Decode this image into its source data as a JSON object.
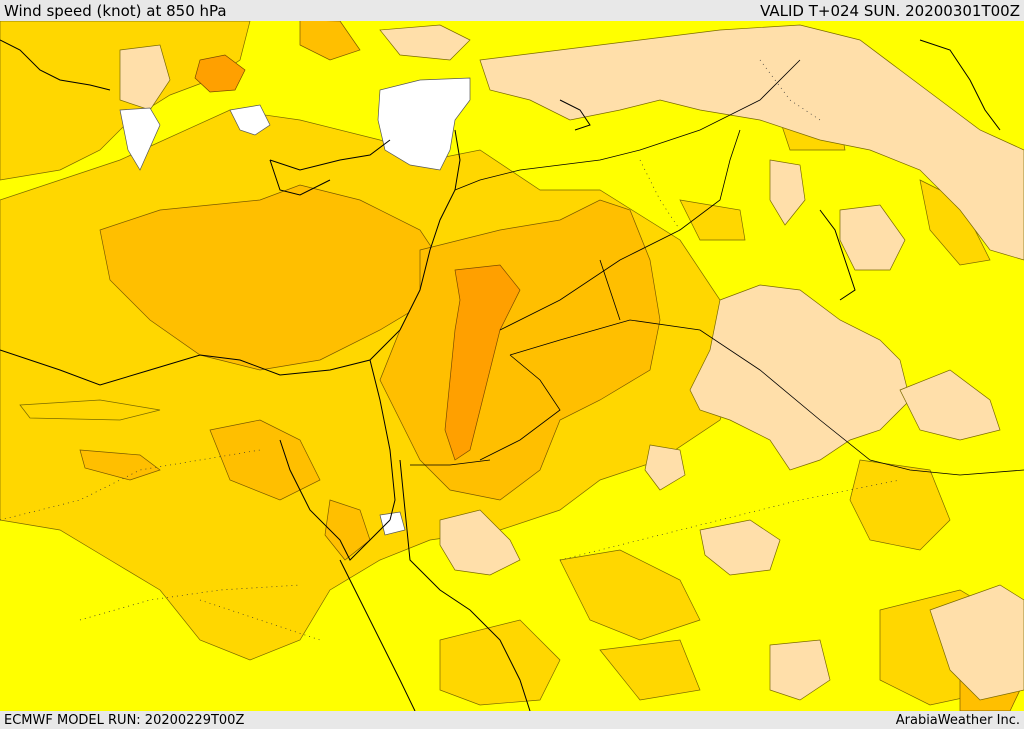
{
  "header": {
    "title": "Wind speed (knot) at 850 hPa",
    "valid_time": "VALID T+024 SUN. 20200301T00Z"
  },
  "footer": {
    "model_run": "ECMWF MODEL RUN: 20200229T00Z",
    "credit": "ArabiaWeather Inc."
  },
  "palette": {
    "yellow": "#ffff00",
    "gold": "#ffd700",
    "orange": "#ffbf00",
    "dark_orange": "#ffa000",
    "peach": "#ffdfaa",
    "white": "#ffffff",
    "bar_bg": "#e8e8e8"
  }
}
